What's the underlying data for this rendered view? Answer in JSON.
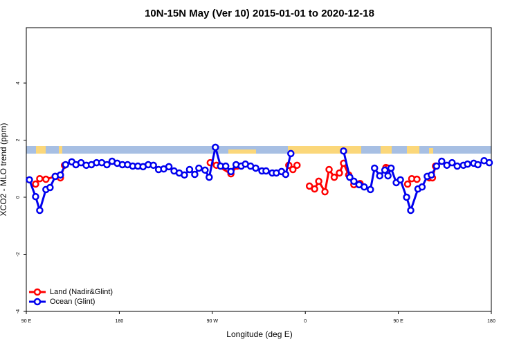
{
  "chart_data": {
    "type": "line",
    "title": "10N-15N May (Ver 10)   2015-01-01 to 2020-12-18",
    "x_label": "Longitude (deg E)",
    "y_label": "XCO2 - MLO trend (ppm)",
    "xlim": [
      90,
      540
    ],
    "xticks": [
      {
        "value": 90,
        "label": "90 E"
      },
      {
        "value": 180,
        "label": "180"
      },
      {
        "value": 270,
        "label": "90 W"
      },
      {
        "value": 360,
        "label": "0"
      },
      {
        "value": 450,
        "label": "90 E"
      },
      {
        "value": 540,
        "label": "180"
      }
    ],
    "ylim": [
      -4,
      5.94
    ],
    "yticks": [
      -4,
      -2,
      0,
      2,
      4
    ],
    "legend": "bottom-left",
    "series": [
      {
        "name": "Land (Nadir&Glint)",
        "color": "#ff0000",
        "x": [
          99,
          103,
          109,
          118,
          123,
          127,
          null,
          268,
          274,
          288,
          294,
          null,
          344,
          348,
          352,
          null,
          364,
          369,
          373,
          379,
          383,
          388,
          393,
          397,
          402,
          407,
          413,
          null,
          438,
          440,
          null,
          459,
          463,
          468,
          null,
          480,
          483,
          486
        ],
        "values": [
          0.46,
          0.65,
          0.63,
          0.73,
          0.68,
          1.12,
          null,
          1.21,
          1.12,
          0.82,
          1.09,
          null,
          1.12,
          0.97,
          1.12,
          null,
          0.39,
          0.29,
          0.56,
          0.19,
          0.97,
          0.7,
          0.85,
          1.19,
          0.78,
          0.44,
          0.48,
          null,
          1.04,
          1.02,
          null,
          0.46,
          0.65,
          0.63,
          null,
          0.68,
          0.68,
          1.09
        ]
      },
      {
        "name": "Ocean (Glint)",
        "color": "#0000ee",
        "x": [
          93,
          99,
          103,
          109,
          113,
          118,
          123,
          128,
          134,
          138,
          143,
          148,
          153,
          158,
          163,
          168,
          173,
          178,
          183,
          188,
          193,
          198,
          203,
          208,
          213,
          218,
          223,
          228,
          233,
          238,
          243,
          248,
          253,
          257,
          263,
          267,
          273,
          278,
          283,
          288,
          293,
          298,
          302,
          307,
          312,
          318,
          322,
          328,
          332,
          337,
          341,
          346,
          null,
          397,
          403,
          407,
          412,
          417,
          423,
          427,
          432,
          437,
          440,
          443,
          448,
          452,
          458,
          462,
          469,
          473,
          478,
          482,
          487,
          492,
          497,
          502,
          507,
          513,
          517,
          523,
          527,
          533,
          538
        ],
        "values": [
          0.61,
          0.02,
          -0.46,
          0.27,
          0.34,
          0.73,
          0.78,
          1.14,
          1.24,
          1.14,
          1.21,
          1.12,
          1.14,
          1.21,
          1.21,
          1.14,
          1.26,
          1.19,
          1.14,
          1.14,
          1.09,
          1.09,
          1.07,
          1.14,
          1.12,
          0.97,
          0.99,
          1.07,
          0.92,
          0.85,
          0.78,
          0.97,
          0.8,
          1.02,
          0.95,
          0.7,
          1.75,
          1.09,
          1.09,
          0.9,
          1.14,
          1.09,
          1.16,
          1.09,
          1.02,
          0.92,
          0.92,
          0.85,
          0.85,
          0.9,
          0.8,
          1.53,
          null,
          1.62,
          0.7,
          0.56,
          0.44,
          0.36,
          0.27,
          1.02,
          0.75,
          0.95,
          0.75,
          1.02,
          0.51,
          0.61,
          0.0,
          -0.46,
          0.29,
          0.36,
          0.73,
          0.78,
          1.09,
          1.26,
          1.12,
          1.21,
          1.09,
          1.12,
          1.16,
          1.19,
          1.14,
          1.28,
          1.21
        ]
      }
    ]
  }
}
